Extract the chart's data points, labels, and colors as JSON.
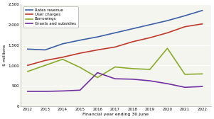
{
  "years": [
    2012,
    2013,
    2014,
    2015,
    2016,
    2017,
    2018,
    2019,
    2020,
    2021,
    2022
  ],
  "rates_revenue": [
    1400,
    1380,
    1530,
    1620,
    1700,
    1800,
    1900,
    2000,
    2100,
    2220,
    2350
  ],
  "user_charges": [
    1000,
    1120,
    1200,
    1300,
    1380,
    1450,
    1580,
    1680,
    1800,
    1950,
    2020
  ],
  "borrowings": [
    850,
    1000,
    1150,
    950,
    700,
    960,
    920,
    900,
    1420,
    780,
    790
  ],
  "grants_subsidies": [
    360,
    360,
    370,
    390,
    820,
    670,
    660,
    620,
    550,
    460,
    480
  ],
  "colors": {
    "rates_revenue": "#3c5fa5",
    "user_charges": "#c0392b",
    "borrowings": "#8aab2a",
    "grants_subsidies": "#7030a0"
  },
  "ylim": [
    0,
    2500
  ],
  "yticks": [
    0,
    500,
    1000,
    1500,
    2000,
    2500
  ],
  "ytick_labels": [
    "0",
    "500",
    "1,000",
    "1,500",
    "2,000",
    "2,500"
  ],
  "xlabel": "Financial year ending 30 June",
  "ylabel": "$ millions",
  "legend_labels": [
    "Rates revenue",
    "User charges",
    "Borrowings",
    "Grants and subsidies"
  ],
  "bg_color": "#ffffff",
  "plot_bg_color": "#f5f5f0",
  "grid_color": "#ffffff"
}
